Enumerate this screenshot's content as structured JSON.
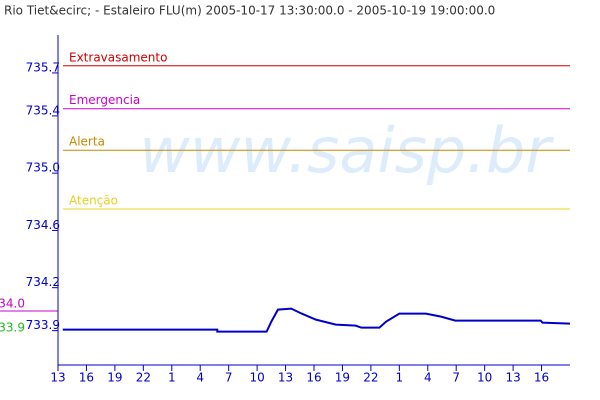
{
  "chart_data": {
    "type": "line",
    "title": "Rio Tiet&ecirc; - Estaleiro FLU(m) 2005-10-17 13:30:00.0 - 2005-10-19 19:00:00.0",
    "watermark": "www.saisp.br",
    "x": [
      0,
      16.3,
      16.3,
      21.5,
      22.0,
      22.7,
      24.1,
      25.2,
      26.7,
      28.8,
      30.9,
      31.5,
      33.4,
      34.1,
      35.5,
      38.3,
      39.9,
      41.4,
      50.4,
      50.6,
      53.5
    ],
    "series": [
      {
        "color": "#0000cc",
        "values": [
          733.907,
          733.907,
          733.893,
          733.893,
          733.963,
          734.047,
          734.054,
          734.019,
          733.977,
          733.942,
          733.935,
          733.921,
          733.921,
          733.963,
          734.019,
          734.019,
          733.998,
          733.97,
          733.97,
          733.956,
          733.949
        ]
      }
    ],
    "xlim": [
      -0.5,
      53.5
    ],
    "xticks": [
      {
        "value": -0.5,
        "label": "13"
      },
      {
        "value": 2.5,
        "label": "16"
      },
      {
        "value": 5.5,
        "label": "19"
      },
      {
        "value": 8.5,
        "label": "22"
      },
      {
        "value": 11.5,
        "label": "1"
      },
      {
        "value": 14.5,
        "label": "4"
      },
      {
        "value": 17.5,
        "label": "7"
      },
      {
        "value": 20.5,
        "label": "10"
      },
      {
        "value": 23.5,
        "label": "13"
      },
      {
        "value": 26.5,
        "label": "16"
      },
      {
        "value": 29.5,
        "label": "19"
      },
      {
        "value": 32.5,
        "label": "22"
      },
      {
        "value": 35.5,
        "label": "1"
      },
      {
        "value": 38.5,
        "label": "4"
      },
      {
        "value": 41.5,
        "label": "7"
      },
      {
        "value": 44.5,
        "label": "10"
      },
      {
        "value": 47.5,
        "label": "13"
      },
      {
        "value": 50.5,
        "label": "16"
      }
    ],
    "ylim": [
      733.66,
      735.93
    ],
    "yticks": [
      733.9,
      734.2,
      734.6,
      {
        "value": 735.0,
        "label": "735.0"
      },
      735.4,
      735.7
    ],
    "thresholds": [
      {
        "name": "Extravasamento",
        "value": 735.75,
        "color": "#cc0000"
      },
      {
        "name": "Emergencia",
        "value": 735.45,
        "color": "#cc00cc"
      },
      {
        "name": "Alerta",
        "value": 735.16,
        "color": "#cc8800"
      },
      {
        "name": "Atenção",
        "value": 734.75,
        "color": "#e8d020"
      }
    ],
    "side_labels": [
      {
        "text": "34.0",
        "color": "#cc00cc"
      },
      {
        "text": "33.9",
        "color": "#22bb22"
      }
    ]
  }
}
